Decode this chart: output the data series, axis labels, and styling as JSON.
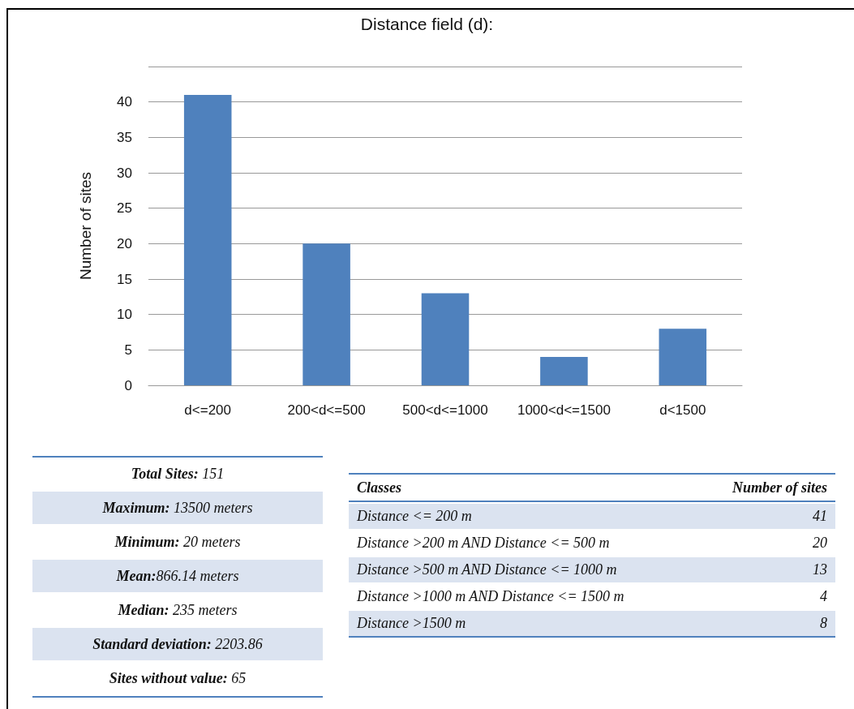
{
  "chart_data": [
    {
      "type": "bar",
      "title": "Distance field (d):",
      "ylabel": "Number of sites",
      "categories": [
        "d<=200",
        "200<d<=500",
        "500<d<=1000",
        "1000<d<=1500",
        "d<1500"
      ],
      "values": [
        41,
        20,
        13,
        4,
        8
      ],
      "color": "#4f81bd",
      "ylim": [
        0,
        45
      ],
      "yticks": [
        0,
        5,
        10,
        15,
        20,
        25,
        30,
        35,
        40
      ],
      "grid": "y"
    },
    {
      "type": "other",
      "annotations": [
        "Total Sites: 151",
        "Maximum: 13500 meters",
        "Minimum: 20 meters",
        "Mean:866.14 meters",
        "Median: 235 meters",
        "Standard deviation: 2203.86",
        "Sites without value: 65"
      ]
    },
    {
      "type": "other",
      "annotations": [
        "Classes",
        "Number of sites"
      ],
      "categories": [
        "Distance <= 200 m",
        "Distance >200 m AND Distance <= 500 m",
        "Distance >500 m AND Distance <= 1000 m",
        "Distance >1000 m AND Distance <= 1500 m",
        "Distance >1500 m"
      ],
      "values": [
        41,
        20,
        13,
        4,
        8
      ],
      "data_labels": true
    }
  ]
}
